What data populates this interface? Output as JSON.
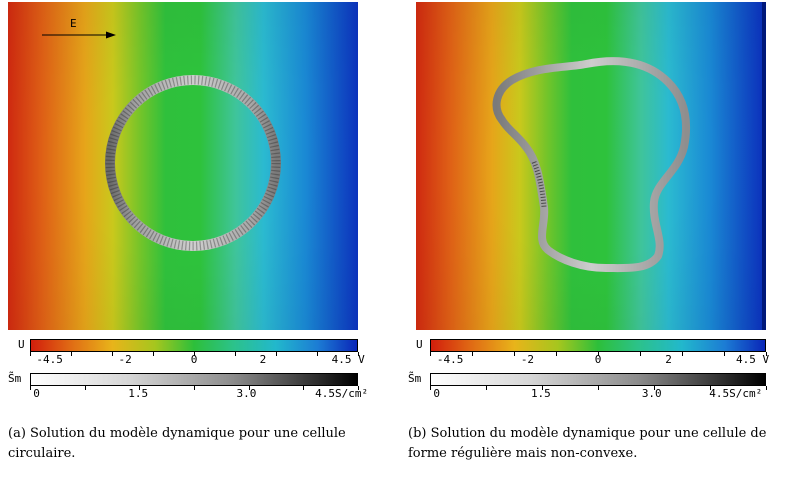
{
  "figures": [
    {
      "id": "a",
      "field_label": "E",
      "colorbar_u": {
        "symbol": "U",
        "ticks": [
          "-4.5",
          "-2",
          "0",
          "2",
          "4.5 V"
        ]
      },
      "colorbar_s": {
        "symbol": "S̃m",
        "ticks": [
          "0",
          "1.5",
          "3.0",
          "4.5S/cm²"
        ]
      },
      "caption": "(a) Solution du modèle dynamique pour une cellule circulaire."
    },
    {
      "id": "b",
      "colorbar_u": {
        "symbol": "U",
        "ticks": [
          "-4.5",
          "-2",
          "0",
          "2",
          "4.5 V"
        ]
      },
      "colorbar_s": {
        "symbol": "S̃m",
        "ticks": [
          "0",
          "1.5",
          "3.0",
          "4.5S/cm²"
        ]
      },
      "caption": "(b) Solution du modèle dynamique pour une cellule de forme régulière mais non-convexe."
    }
  ]
}
